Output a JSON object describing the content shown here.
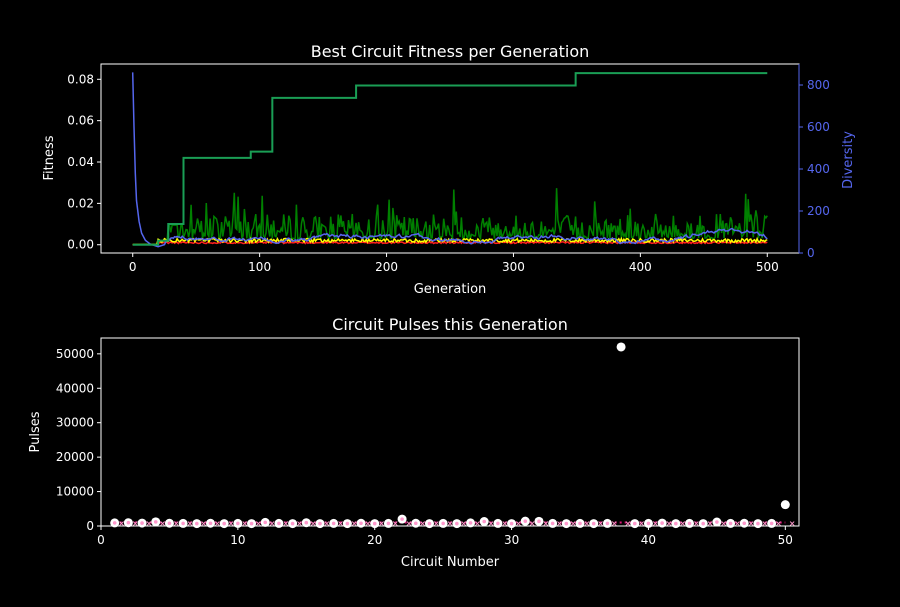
{
  "chart_data": [
    {
      "type": "line",
      "title": "Best Circuit Fitness per Generation",
      "xlabel": "Generation",
      "ylabel": "Fitness",
      "y2label": "Diversity",
      "xlim": [
        -25,
        525
      ],
      "ylim": [
        -0.004,
        0.0874
      ],
      "y2lim": [
        0,
        900
      ],
      "xticks": [
        "0",
        "100",
        "200",
        "300",
        "400",
        "500"
      ],
      "yticks": [
        "0.00",
        "0.02",
        "0.04",
        "0.06",
        "0.08"
      ],
      "y2ticks": [
        "0",
        "200",
        "400",
        "600",
        "800"
      ],
      "colors": {
        "best": "#1a9e55",
        "fluct": "#008000",
        "avg": "#ffff00",
        "low": "#ff2020",
        "diversity": "#5566ee",
        "axis": "#ffffff",
        "axis2": "#5566ee"
      },
      "best_fitness_steps": [
        {
          "x": 0,
          "y": 0.0
        },
        {
          "x": 20,
          "y": 0.002
        },
        {
          "x": 28,
          "y": 0.01
        },
        {
          "x": 40,
          "y": 0.042
        },
        {
          "x": 93,
          "y": 0.045
        },
        {
          "x": 110,
          "y": 0.071
        },
        {
          "x": 176,
          "y": 0.077
        },
        {
          "x": 349,
          "y": 0.083
        },
        {
          "x": 500,
          "y": 0.083
        }
      ],
      "diversity_head": [
        {
          "x": 0,
          "y": 860
        },
        {
          "x": 1,
          "y": 600
        },
        {
          "x": 2,
          "y": 380
        },
        {
          "x": 3,
          "y": 250
        },
        {
          "x": 5,
          "y": 150
        },
        {
          "x": 7,
          "y": 95
        },
        {
          "x": 10,
          "y": 60
        },
        {
          "x": 14,
          "y": 42
        },
        {
          "x": 20,
          "y": 30
        },
        {
          "x": 25,
          "y": 40
        }
      ],
      "diversity_tail_level": 70,
      "generations": 500
    },
    {
      "type": "scatter",
      "title": "Circuit Pulses this Generation",
      "xlabel": "Circuit Number",
      "ylabel": "Pulses",
      "xlim": [
        0,
        51
      ],
      "ylim": [
        0,
        54600
      ],
      "xticks": [
        "0",
        "10",
        "20",
        "30",
        "40",
        "50"
      ],
      "yticks": [
        "0",
        "10000",
        "20000",
        "30000",
        "40000",
        "50000"
      ],
      "points": [
        {
          "x": 1,
          "y": 900
        },
        {
          "x": 2,
          "y": 950
        },
        {
          "x": 3,
          "y": 850
        },
        {
          "x": 4,
          "y": 1200
        },
        {
          "x": 5,
          "y": 800
        },
        {
          "x": 6,
          "y": 750
        },
        {
          "x": 7,
          "y": 700
        },
        {
          "x": 8,
          "y": 800
        },
        {
          "x": 9,
          "y": 700
        },
        {
          "x": 10,
          "y": 750
        },
        {
          "x": 11,
          "y": 700
        },
        {
          "x": 12,
          "y": 1050
        },
        {
          "x": 13,
          "y": 750
        },
        {
          "x": 14,
          "y": 700
        },
        {
          "x": 15,
          "y": 950
        },
        {
          "x": 16,
          "y": 700
        },
        {
          "x": 17,
          "y": 750
        },
        {
          "x": 18,
          "y": 700
        },
        {
          "x": 19,
          "y": 800
        },
        {
          "x": 20,
          "y": 700
        },
        {
          "x": 21,
          "y": 750
        },
        {
          "x": 22,
          "y": 2000
        },
        {
          "x": 23,
          "y": 800
        },
        {
          "x": 24,
          "y": 700
        },
        {
          "x": 25,
          "y": 750
        },
        {
          "x": 26,
          "y": 700
        },
        {
          "x": 27,
          "y": 900
        },
        {
          "x": 28,
          "y": 1300
        },
        {
          "x": 29,
          "y": 750
        },
        {
          "x": 30,
          "y": 700
        },
        {
          "x": 31,
          "y": 1400
        },
        {
          "x": 32,
          "y": 1350
        },
        {
          "x": 33,
          "y": 750
        },
        {
          "x": 34,
          "y": 700
        },
        {
          "x": 35,
          "y": 750
        },
        {
          "x": 36,
          "y": 700
        },
        {
          "x": 37,
          "y": 750
        },
        {
          "x": 38,
          "y": 52000
        },
        {
          "x": 39,
          "y": 700
        },
        {
          "x": 40,
          "y": 750
        },
        {
          "x": 41,
          "y": 850
        },
        {
          "x": 42,
          "y": 700
        },
        {
          "x": 43,
          "y": 750
        },
        {
          "x": 44,
          "y": 700
        },
        {
          "x": 45,
          "y": 1150
        },
        {
          "x": 46,
          "y": 750
        },
        {
          "x": 47,
          "y": 800
        },
        {
          "x": 48,
          "y": 700
        },
        {
          "x": 49,
          "y": 750
        },
        {
          "x": 50,
          "y": 6200
        }
      ],
      "threshold_y": 1000,
      "colors": {
        "points": "#ffffff",
        "inner": "#ff99cc",
        "threshold": "#dd1177",
        "axis": "#ffffff"
      }
    }
  ]
}
